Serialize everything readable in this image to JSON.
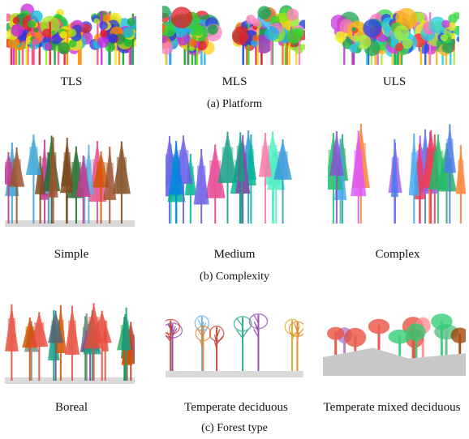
{
  "figure": {
    "rows": [
      {
        "caption": "(a)  Platform",
        "panels": [
          {
            "label": "TLS",
            "style": "dense",
            "palette": [
              "#e4192b",
              "#2b3bd9",
              "#21c52a",
              "#ff8a00",
              "#f5e60f",
              "#a2e61a",
              "#0fb9d8",
              "#c72bd9",
              "#1a9d3a",
              "#ff4d8d"
            ]
          },
          {
            "label": "MLS",
            "style": "crown",
            "palette": [
              "#2fd62f",
              "#1e3be0",
              "#f06a14",
              "#ffd21f",
              "#e01f2a",
              "#8fe81a",
              "#26b3f0",
              "#b82fd6",
              "#19a34a",
              "#ff7fbf"
            ]
          },
          {
            "label": "ULS",
            "style": "dense",
            "palette": [
              "#ff2b2b",
              "#2c47e6",
              "#39d94a",
              "#ffb31a",
              "#f0f01e",
              "#a7f03a",
              "#26cfe0",
              "#c93ae0",
              "#ff70c8",
              "#1ea85a"
            ]
          }
        ]
      },
      {
        "caption": "(b)  Complexity",
        "panels": [
          {
            "label": "Simple",
            "style": "conifer",
            "palette": [
              "#1f6b2a",
              "#c23b8f",
              "#3aa5d6",
              "#7d4a1e",
              "#e74c8a",
              "#2e8b8b",
              "#9b59b6",
              "#5dade2",
              "#a0522d",
              "#d35400"
            ]
          },
          {
            "label": "Medium",
            "style": "tall",
            "palette": [
              "#8e44ad",
              "#16a085",
              "#e84393",
              "#2ecc71",
              "#3498db",
              "#6c5ce7",
              "#00b894",
              "#fd79a8",
              "#0984e3",
              "#55efc4"
            ]
          },
          {
            "label": "Complex",
            "style": "mixed",
            "palette": [
              "#27ae60",
              "#e056fd",
              "#eb3b5a",
              "#0fb9b1",
              "#45aaf2",
              "#a55eea",
              "#20bf6b",
              "#fa8231",
              "#8854d0",
              "#4b7bec"
            ]
          }
        ]
      },
      {
        "caption": "(c) Forest type",
        "panels": [
          {
            "label": "Boreal",
            "style": "conifer",
            "palette": [
              "#1e8449",
              "#c0392b",
              "#2980b9",
              "#7f8c8d",
              "#d35400",
              "#16a085",
              "#8e44ad",
              "#e74c3c",
              "#27ae60",
              "#566573"
            ]
          },
          {
            "label": "Temperate deciduous",
            "style": "sparse",
            "palette": [
              "#e67e22",
              "#8e44ad",
              "#c0392b",
              "#16a085",
              "#7f8c8d",
              "#d4ac0d",
              "#5dade2",
              "#a04000",
              "#76448a",
              "#48c9b0"
            ]
          },
          {
            "label": "Temperate mixed deciduous",
            "style": "hill",
            "palette": [
              "#c0392b",
              "#e74c3c",
              "#27ae60",
              "#2ecc71",
              "#f39c12",
              "#ec7063",
              "#af7ac5",
              "#52be80",
              "#a04000",
              "#ff8c94"
            ]
          }
        ]
      }
    ]
  }
}
